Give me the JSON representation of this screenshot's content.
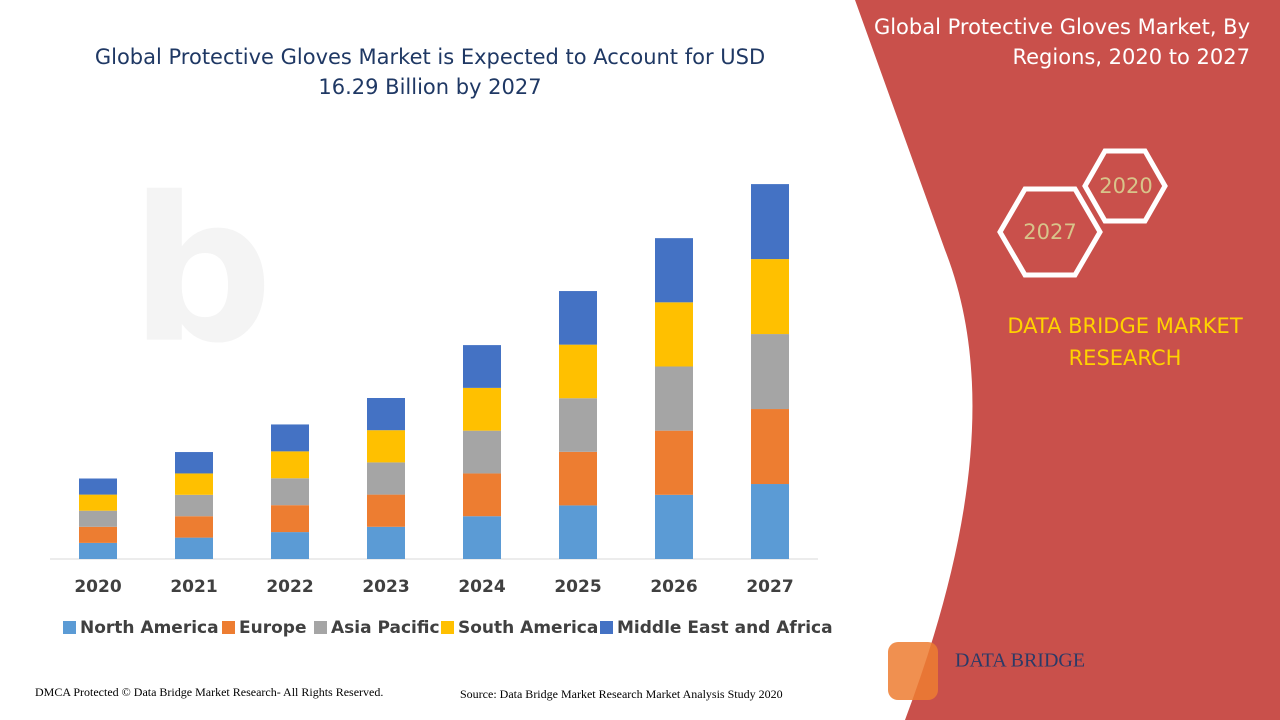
{
  "chart_data": {
    "type": "stacked_bar",
    "title": "Global Protective Gloves Market is Expected to Account for USD 16.29 Billion by 2027",
    "categories": [
      "2020",
      "2021",
      "2022",
      "2023",
      "2024",
      "2025",
      "2026",
      "2027"
    ],
    "series": [
      {
        "name": "North America",
        "color": "#5b9bd5",
        "values": [
          0.7,
          0.93,
          1.17,
          1.4,
          1.86,
          2.33,
          2.79,
          3.26
        ]
      },
      {
        "name": "Europe",
        "color": "#ed7d31",
        "values": [
          0.7,
          0.93,
          1.17,
          1.4,
          1.86,
          2.33,
          2.79,
          3.26
        ]
      },
      {
        "name": "Asia Pacific",
        "color": "#a5a5a5",
        "values": [
          0.7,
          0.93,
          1.17,
          1.4,
          1.86,
          2.33,
          2.79,
          3.26
        ]
      },
      {
        "name": "South America",
        "color": "#ffc000",
        "values": [
          0.7,
          0.93,
          1.17,
          1.4,
          1.86,
          2.33,
          2.79,
          3.26
        ]
      },
      {
        "name": "Middle East and Africa",
        "color": "#4472c4",
        "values": [
          0.7,
          0.93,
          1.17,
          1.4,
          1.86,
          2.33,
          2.79,
          3.26
        ]
      }
    ],
    "ylim": [
      0,
      17
    ]
  },
  "side": {
    "title": "Global Protective Gloves Market, By Regions, 2020 to 2027",
    "badge_start": "2020",
    "badge_end": "2027",
    "brand": "DATA BRIDGE MARKET RESEARCH",
    "logo": "DATA BRIDGE"
  },
  "footer": {
    "left": "DMCA Protected © Data Bridge Market Research- All Rights Reserved.",
    "right": "Source: Data Bridge Market Research Market Analysis Study 2020"
  }
}
